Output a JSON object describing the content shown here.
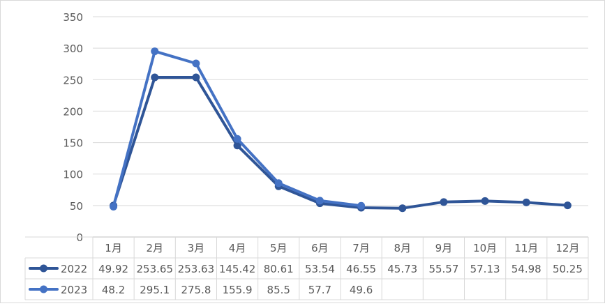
{
  "chart_data": {
    "type": "line",
    "title": "",
    "xlabel": "",
    "ylabel": "",
    "ylim": [
      0,
      350
    ],
    "yticks": [
      0,
      50,
      100,
      150,
      200,
      250,
      300,
      350
    ],
    "grid": true,
    "legend": "data-table",
    "categories": [
      "1月",
      "2月",
      "3月",
      "4月",
      "5月",
      "6月",
      "7月",
      "8月",
      "9月",
      "10月",
      "11月",
      "12月"
    ],
    "series": [
      {
        "name": "2022",
        "color": "#2f5597",
        "values": [
          49.92,
          253.65,
          253.63,
          145.42,
          80.61,
          53.54,
          46.55,
          45.73,
          55.57,
          57.13,
          54.98,
          50.25
        ],
        "labels": [
          "49.92",
          "253.65",
          "253.63",
          "145.42",
          "80.61",
          "53.54",
          "46.55",
          "45.73",
          "55.57",
          "57.13",
          "54.98",
          "50.25"
        ]
      },
      {
        "name": "2023",
        "color": "#4472c4",
        "values": [
          48.2,
          295.1,
          275.8,
          155.9,
          85.5,
          57.7,
          49.6,
          null,
          null,
          null,
          null,
          null
        ],
        "labels": [
          "48.2",
          "295.1",
          "275.8",
          "155.9",
          "85.5",
          "57.7",
          "49.6",
          "",
          "",
          "",
          "",
          ""
        ]
      }
    ]
  }
}
